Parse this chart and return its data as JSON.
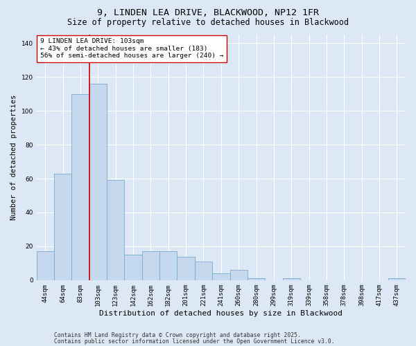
{
  "title_line1": "9, LINDEN LEA DRIVE, BLACKWOOD, NP12 1FR",
  "title_line2": "Size of property relative to detached houses in Blackwood",
  "xlabel": "Distribution of detached houses by size in Blackwood",
  "ylabel": "Number of detached properties",
  "categories": [
    "44sqm",
    "64sqm",
    "83sqm",
    "103sqm",
    "123sqm",
    "142sqm",
    "162sqm",
    "182sqm",
    "201sqm",
    "221sqm",
    "241sqm",
    "260sqm",
    "280sqm",
    "299sqm",
    "319sqm",
    "339sqm",
    "358sqm",
    "378sqm",
    "398sqm",
    "417sqm",
    "437sqm"
  ],
  "values": [
    17,
    63,
    110,
    116,
    59,
    15,
    17,
    17,
    14,
    11,
    4,
    6,
    1,
    0,
    1,
    0,
    0,
    0,
    0,
    0,
    1
  ],
  "bar_color": "#c5d8ee",
  "bar_edge_color": "#7aaad0",
  "vline_color": "#cc0000",
  "vline_x": 2.5,
  "annotation_text": "9 LINDEN LEA DRIVE: 103sqm\n← 43% of detached houses are smaller (183)\n56% of semi-detached houses are larger (240) →",
  "annotation_box_color": "#ffffff",
  "annotation_box_edge": "#cc0000",
  "ylim": [
    0,
    145
  ],
  "yticks": [
    0,
    20,
    40,
    60,
    80,
    100,
    120,
    140
  ],
  "background_color": "#dce8f5",
  "plot_bg_color": "#dce8f5",
  "footer_line1": "Contains HM Land Registry data © Crown copyright and database right 2025.",
  "footer_line2": "Contains public sector information licensed under the Open Government Licence v3.0.",
  "title_fontsize": 9.5,
  "subtitle_fontsize": 8.5,
  "ylabel_fontsize": 7.5,
  "xlabel_fontsize": 8,
  "tick_fontsize": 6.5,
  "ann_fontsize": 6.8,
  "footer_fontsize": 5.8
}
